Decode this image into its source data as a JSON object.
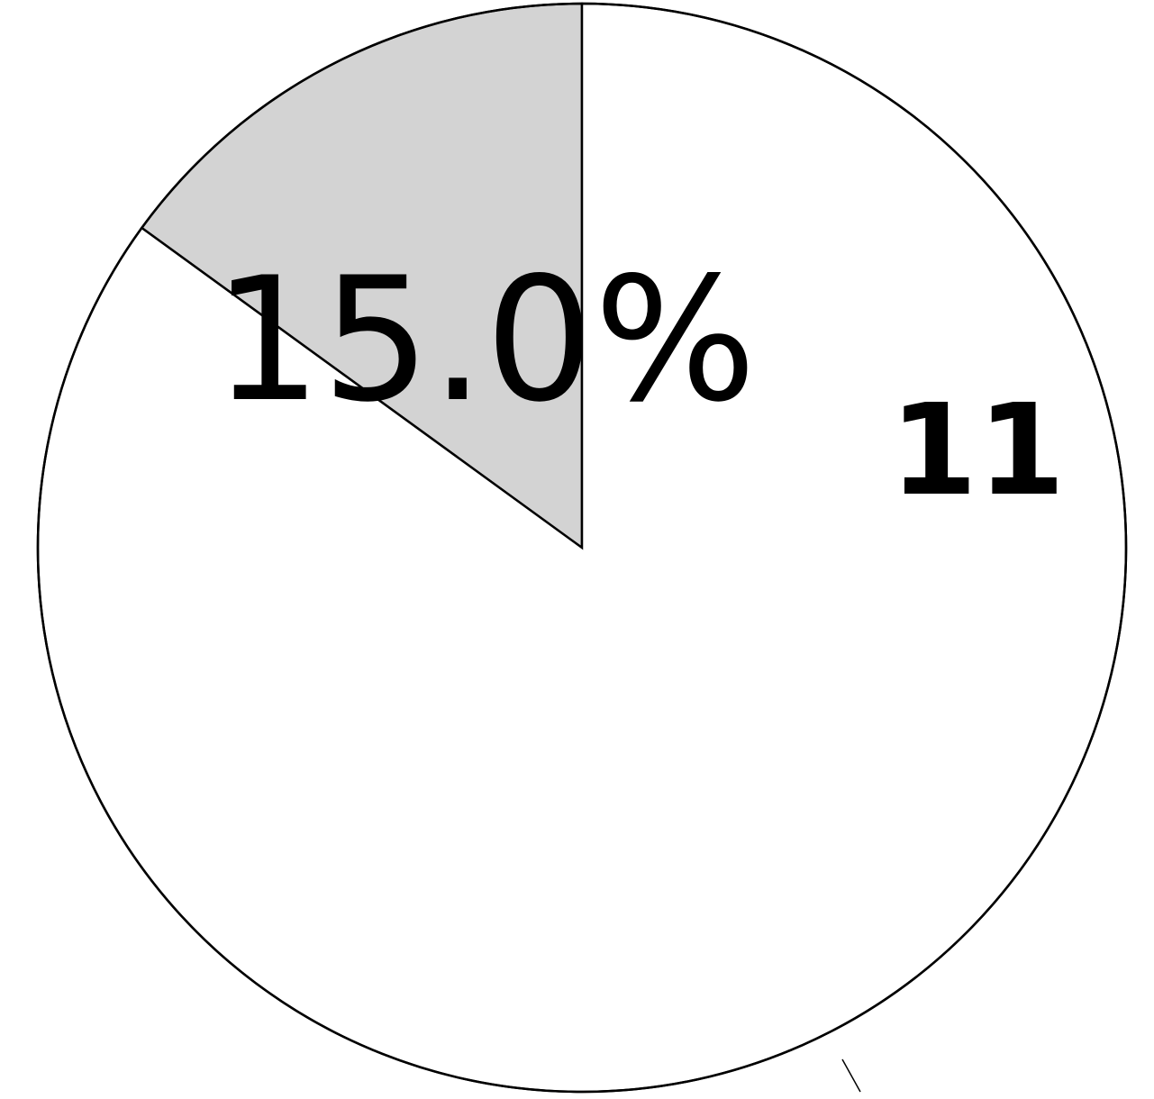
{
  "chart_data": {
    "type": "pie",
    "title": "",
    "start_angle_deg": 0,
    "direction": "counterclockwise",
    "slices": [
      {
        "value": 15.0,
        "label": "15.0%",
        "color": "#d3d3d3"
      },
      {
        "value": 85.0,
        "label": "11",
        "color": "#ffffff"
      }
    ],
    "stroke_color": "#000000"
  }
}
